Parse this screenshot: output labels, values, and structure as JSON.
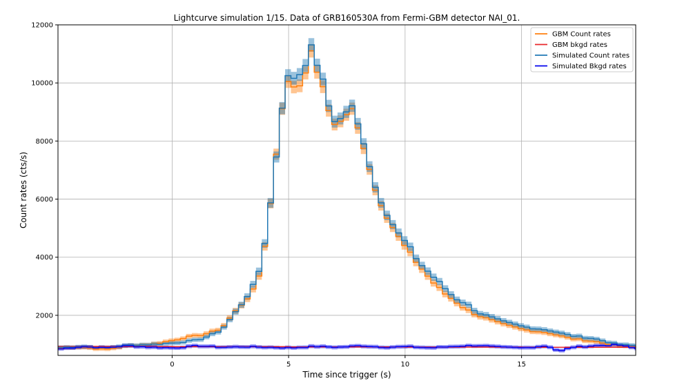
{
  "chart_data": {
    "type": "line",
    "title": "Lightcurve simulation 1/15. Data of GRB160530A from Fermi-GBM detector NAI_01.",
    "xlabel": "Time since trigger (s)",
    "ylabel": "Count rates (cts/s)",
    "xlim": [
      -4.9,
      19.9
    ],
    "ylim": [
      620,
      12000
    ],
    "xticks": [
      0,
      5,
      10,
      15
    ],
    "yticks": [
      2000,
      4000,
      6000,
      8000,
      10000,
      12000
    ],
    "grid": true,
    "legend_position": "upper-right",
    "series": [
      {
        "name": "GBM Count rates",
        "color": "#ff7f0e",
        "band": true,
        "x": [
          -4.9,
          -4.0,
          -3.0,
          -2.0,
          -1.0,
          0.0,
          0.5,
          1.0,
          1.5,
          2.0,
          2.5,
          3.0,
          3.5,
          3.75,
          4.0,
          4.25,
          4.5,
          4.75,
          5.0,
          5.25,
          5.5,
          5.75,
          6.0,
          6.25,
          6.5,
          6.75,
          7.0,
          7.25,
          7.5,
          7.75,
          8.0,
          8.25,
          8.5,
          9.0,
          9.5,
          10.0,
          10.5,
          11.0,
          11.5,
          12.0,
          12.5,
          13.0,
          14.0,
          15.0,
          16.0,
          17.0,
          18.0,
          19.0,
          19.9
        ],
        "y": [
          880,
          900,
          820,
          950,
          1000,
          1150,
          1250,
          1300,
          1400,
          1550,
          2050,
          2500,
          3000,
          3900,
          5200,
          6800,
          8800,
          9900,
          10000,
          9800,
          10200,
          11000,
          10800,
          10000,
          9300,
          8700,
          8600,
          8700,
          9300,
          8600,
          8100,
          7500,
          6500,
          5600,
          4800,
          4200,
          3700,
          3200,
          2800,
          2500,
          2200,
          2000,
          1700,
          1500,
          1400,
          1200,
          1100,
          950,
          900
        ]
      },
      {
        "name": "GBM bkgd rates",
        "color": "#e8262a",
        "band": false,
        "x": [
          -4.9,
          -2.0,
          0.0,
          5.0,
          10.0,
          15.0,
          19.9
        ],
        "y": [
          930,
          925,
          920,
          910,
          905,
          900,
          895
        ]
      },
      {
        "name": "Simulated Count rates",
        "color": "#1f77b4",
        "band": true,
        "x": [
          -4.9,
          -4.0,
          -3.0,
          -2.0,
          -1.0,
          0.0,
          0.5,
          1.0,
          1.5,
          2.0,
          2.5,
          3.0,
          3.5,
          3.75,
          4.0,
          4.25,
          4.5,
          4.75,
          5.0,
          5.25,
          5.5,
          5.75,
          6.0,
          6.25,
          6.5,
          6.75,
          7.0,
          7.25,
          7.5,
          7.75,
          8.0,
          8.25,
          8.5,
          9.0,
          9.5,
          10.0,
          10.5,
          11.0,
          11.5,
          12.0,
          12.5,
          13.0,
          14.0,
          15.0,
          16.0,
          17.0,
          18.0,
          19.0,
          19.9
        ],
        "y": [
          900,
          930,
          880,
          970,
          1000,
          1050,
          1100,
          1150,
          1300,
          1500,
          2000,
          2550,
          3200,
          4000,
          5300,
          6700,
          8700,
          10100,
          10200,
          10250,
          10500,
          11200,
          11000,
          10300,
          9500,
          8800,
          8700,
          8800,
          9400,
          8700,
          8300,
          7600,
          6600,
          5700,
          4900,
          4400,
          3800,
          3400,
          3000,
          2600,
          2400,
          2100,
          1800,
          1600,
          1500,
          1300,
          1200,
          1000,
          950
        ]
      },
      {
        "name": "Simulated Bkgd rates",
        "color": "#0000ee",
        "band": true,
        "x": [
          -4.9,
          -4.0,
          -3.0,
          -2.0,
          -1.0,
          0.0,
          1.0,
          2.0,
          3.0,
          4.0,
          5.0,
          6.0,
          7.0,
          8.0,
          9.0,
          10.0,
          11.0,
          12.0,
          13.0,
          14.0,
          15.0,
          16.0,
          16.5,
          17.0,
          18.0,
          19.0,
          19.9
        ],
        "y": [
          850,
          920,
          880,
          950,
          900,
          880,
          950,
          900,
          920,
          900,
          880,
          930,
          900,
          950,
          900,
          920,
          880,
          930,
          960,
          900,
          880,
          950,
          750,
          900,
          950,
          980,
          850
        ]
      }
    ]
  }
}
